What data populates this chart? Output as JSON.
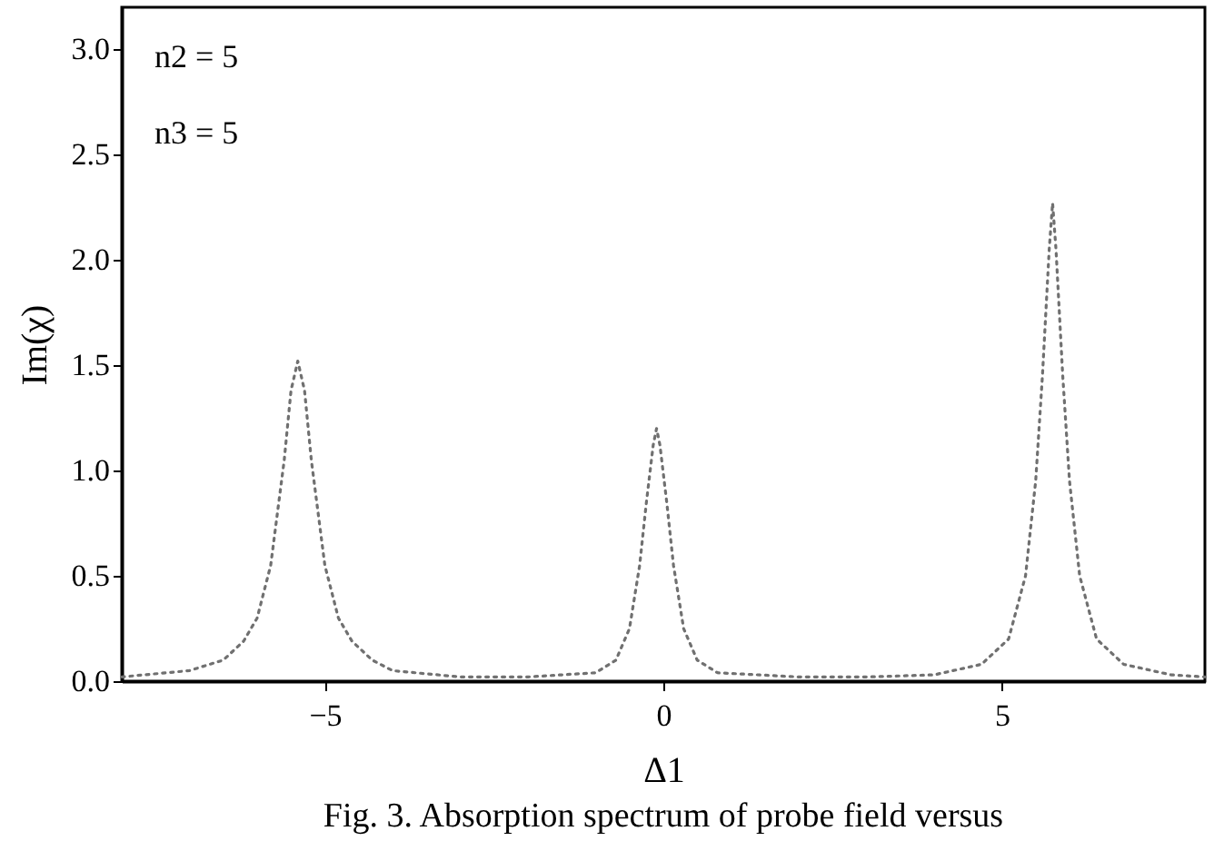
{
  "chart_data": {
    "type": "line",
    "xlabel": "Δ1",
    "ylabel": "Im(χ)",
    "annotations": [
      "n2 = 5",
      "n3 = 5",
      "Fig. 3. Absorption spectrum of probe field versus"
    ],
    "xlim": [
      -8,
      8
    ],
    "xticks": [
      {
        "value": -5,
        "label": "−5"
      },
      0,
      5
    ],
    "ylim": [
      0,
      3.2
    ],
    "yticks": [
      {
        "value": 0,
        "label": "0.0"
      },
      0.5,
      {
        "value": 1,
        "label": "1.0"
      },
      1.5,
      {
        "value": 2,
        "label": "2.0"
      },
      2.5,
      {
        "value": 3,
        "label": "3.0"
      }
    ],
    "grid": false,
    "line_style": "dotted",
    "marker": "none",
    "x": [
      -8,
      -7,
      -6.5,
      -6.2,
      -6,
      -5.8,
      -5.6,
      -5.5,
      -5.4,
      -5.3,
      -5.2,
      -5,
      -4.8,
      -4.6,
      -4.3,
      -4,
      -3,
      -2,
      -1,
      -0.7,
      -0.5,
      -0.35,
      -0.25,
      -0.15,
      -0.1,
      -0.05,
      0.05,
      0.15,
      0.3,
      0.5,
      0.8,
      2,
      3,
      4,
      4.7,
      5.1,
      5.35,
      5.5,
      5.6,
      5.7,
      5.75,
      5.8,
      5.9,
      6,
      6.15,
      6.4,
      6.8,
      7.5,
      8
    ],
    "series": [
      {
        "color": "#707070",
        "values": [
          0.02,
          0.05,
          0.1,
          0.19,
          0.3,
          0.55,
          1.05,
          1.38,
          1.52,
          1.38,
          1.05,
          0.55,
          0.3,
          0.19,
          0.1,
          0.05,
          0.02,
          0.02,
          0.04,
          0.1,
          0.25,
          0.55,
          0.85,
          1.12,
          1.2,
          1.12,
          0.85,
          0.55,
          0.25,
          0.1,
          0.04,
          0.02,
          0.02,
          0.03,
          0.08,
          0.2,
          0.5,
          0.95,
          1.45,
          2.05,
          2.27,
          2.05,
          1.45,
          0.95,
          0.5,
          0.2,
          0.08,
          0.03,
          0.02
        ]
      }
    ]
  }
}
